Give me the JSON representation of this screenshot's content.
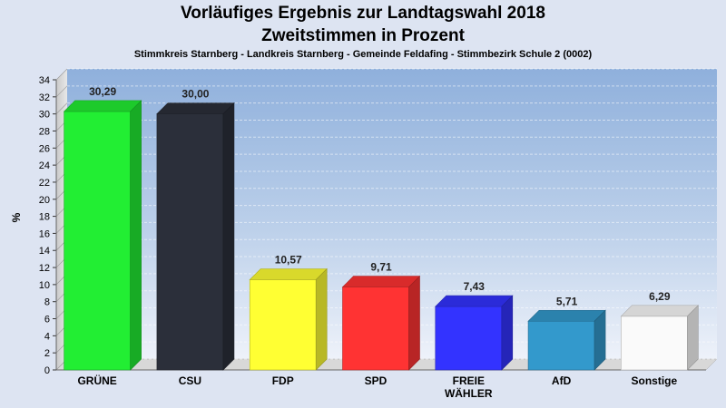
{
  "chart_data": {
    "type": "bar",
    "title": "Vorläufiges Ergebnis zur Landtagswahl 2018",
    "subtitle": "Zweitstimmen in Prozent",
    "caption": "Stimmkreis Starnberg - Landkreis Starnberg - Gemeinde Feldafing - Stimmbezirk Schule 2 (0002)",
    "ylabel": "%",
    "xlabel": "",
    "ylim": [
      0,
      34
    ],
    "ytick_step": 2,
    "grid": true,
    "categories": [
      "GRÜNE",
      "CSU",
      "FDP",
      "SPD",
      "FREIE WÄHLER",
      "AfD",
      "Sonstige"
    ],
    "category_lines": [
      [
        "GRÜNE"
      ],
      [
        "CSU"
      ],
      [
        "FDP"
      ],
      [
        "SPD"
      ],
      [
        "FREIE",
        "WÄHLER"
      ],
      [
        "AfD"
      ],
      [
        "Sonstige"
      ]
    ],
    "values": [
      30.29,
      30.0,
      10.57,
      9.71,
      7.43,
      5.71,
      6.29
    ],
    "value_labels": [
      "30,29",
      "30,00",
      "10,57",
      "9,71",
      "7,43",
      "5,71",
      "6,29"
    ],
    "colors": [
      "#22ee33",
      "#2b2f3a",
      "#ffff33",
      "#ff3333",
      "#3333ff",
      "#3399cc",
      "#fafafa"
    ]
  }
}
